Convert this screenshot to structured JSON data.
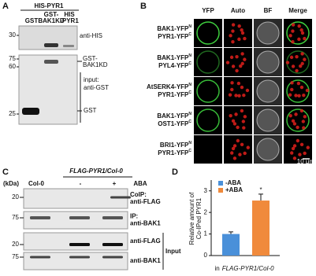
{
  "panels": {
    "A": {
      "label": "A",
      "header": "HIS-PYR1",
      "lanes": [
        [
          "GST"
        ],
        [
          "GST-",
          "BAK1KD"
        ],
        [
          "HIS",
          "-PYR1"
        ]
      ],
      "top_markers": [
        "30"
      ],
      "top_antibody": "anti-HIS",
      "bottom_markers": [
        "75",
        "60",
        "25"
      ],
      "bottom_labels": {
        "upper_band": [
          "GST-",
          "BAK1KD"
        ],
        "antibody": [
          "input:",
          "anti-GST"
        ],
        "lower_band": "GST"
      }
    },
    "B": {
      "label": "B",
      "columns": [
        "YFP",
        "Auto",
        "BF",
        "Merge"
      ],
      "rows": [
        [
          {
            "text": "BAK1-YFP",
            "sup": "N"
          },
          {
            "text": "PYR1-YFP",
            "sup": "C"
          }
        ],
        [
          {
            "text": "BAK1-YFP",
            "sup": "N"
          },
          {
            "text": "PYL4-YFP",
            "sup": "C"
          }
        ],
        [
          {
            "text": "AtSERK4-YFP",
            "sup": "N"
          },
          {
            "text": "PYR1-YFP",
            "sup": "C"
          }
        ],
        [
          {
            "text": "BAK1-YFP",
            "sup": "N"
          },
          {
            "text": "OST1-YFP",
            "sup": "C"
          }
        ],
        [
          {
            "text": "BRI1-YFP",
            "sup": "N"
          },
          {
            "text": "PYR1-YFP",
            "sup": "C"
          }
        ]
      ],
      "scale_bar": "10 μm"
    },
    "C": {
      "label": "C",
      "header": "FLAG-PYR1/Col-0",
      "column_labels": [
        "(kDa)",
        "Col-0",
        "-",
        "+",
        "ABA"
      ],
      "blots": [
        {
          "marker": "20",
          "antibody": [
            "CoIP:",
            "anti-FLAG"
          ]
        },
        {
          "marker": "75",
          "antibody": [
            "IP:",
            "anti-BAK1"
          ]
        },
        {
          "marker": "20",
          "antibody": [
            "anti-FLAG"
          ]
        },
        {
          "marker": "75",
          "antibody": [
            "anti-BAK1"
          ]
        }
      ],
      "input_label": "Input"
    }
  },
  "chart_data": {
    "type": "bar",
    "label": "D",
    "y_label": [
      "Relative amount of",
      "Co-IPed PYR1"
    ],
    "x_label": [
      "in",
      "FLAG-PYR1/Col-0"
    ],
    "series": [
      {
        "name": "-ABA",
        "color": "#4a90d9",
        "values": [
          1.0
        ],
        "errors": [
          0.1
        ]
      },
      {
        "name": "+ABA",
        "color": "#f08a3c",
        "values": [
          2.55
        ],
        "errors": [
          0.3
        ]
      }
    ],
    "annotation": "*",
    "ylim": [
      0,
      3.5
    ],
    "yticks": [
      0,
      1,
      2,
      3
    ]
  }
}
